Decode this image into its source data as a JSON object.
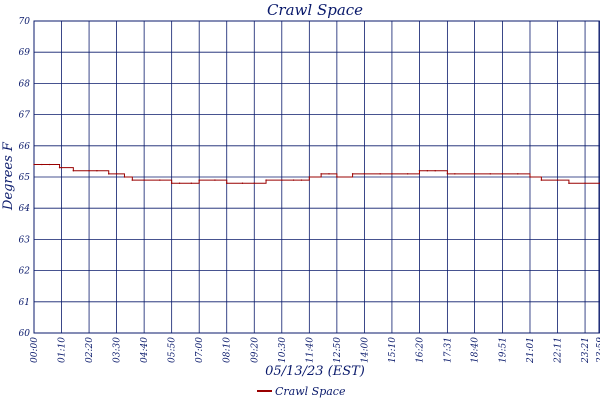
{
  "chart_data": {
    "type": "line",
    "title": "Crawl Space",
    "xlabel": "05/13/23 (EST)",
    "ylabel": "Degrees F",
    "ylim": [
      60,
      70
    ],
    "y_ticks": [
      "60",
      "61",
      "62",
      "63",
      "64",
      "65",
      "66",
      "67",
      "68",
      "69",
      "70"
    ],
    "x_ticks": [
      "00:00",
      "01:10",
      "02:20",
      "03:30",
      "04:40",
      "05:50",
      "07:00",
      "08:10",
      "09:20",
      "10:30",
      "11:40",
      "12:50",
      "14:00",
      "15:10",
      "16:20",
      "17:31",
      "18:40",
      "19:51",
      "21:01",
      "22:11",
      "23:21",
      "23:59"
    ],
    "grid": true,
    "legend_placement": "bottom",
    "series": [
      {
        "name": "Crawl Space",
        "color": "#990000",
        "x": [
          "00:00",
          "00:20",
          "00:40",
          "01:05",
          "01:10",
          "01:40",
          "02:20",
          "02:40",
          "03:10",
          "03:30",
          "03:50",
          "04:10",
          "04:40",
          "05:20",
          "05:50",
          "06:10",
          "06:40",
          "07:00",
          "07:40",
          "08:10",
          "08:50",
          "09:20",
          "09:50",
          "10:30",
          "11:00",
          "11:20",
          "11:40",
          "12:10",
          "12:30",
          "12:50",
          "13:30",
          "14:00",
          "14:40",
          "15:10",
          "15:50",
          "16:20",
          "16:40",
          "17:00",
          "17:31",
          "17:50",
          "18:40",
          "19:20",
          "19:51",
          "20:30",
          "21:01",
          "21:30",
          "22:11",
          "22:40",
          "23:21",
          "23:59"
        ],
        "values": [
          65.4,
          65.4,
          65.4,
          65.3,
          65.3,
          65.2,
          65.2,
          65.2,
          65.1,
          65.1,
          65.0,
          64.9,
          64.9,
          64.9,
          64.8,
          64.8,
          64.8,
          64.9,
          64.9,
          64.8,
          64.8,
          64.8,
          64.9,
          64.9,
          64.9,
          64.9,
          65.0,
          65.1,
          65.1,
          65.0,
          65.1,
          65.1,
          65.1,
          65.1,
          65.1,
          65.2,
          65.2,
          65.2,
          65.1,
          65.1,
          65.1,
          65.1,
          65.1,
          65.1,
          65.0,
          64.9,
          64.9,
          64.8,
          64.8,
          64.8
        ]
      }
    ]
  }
}
